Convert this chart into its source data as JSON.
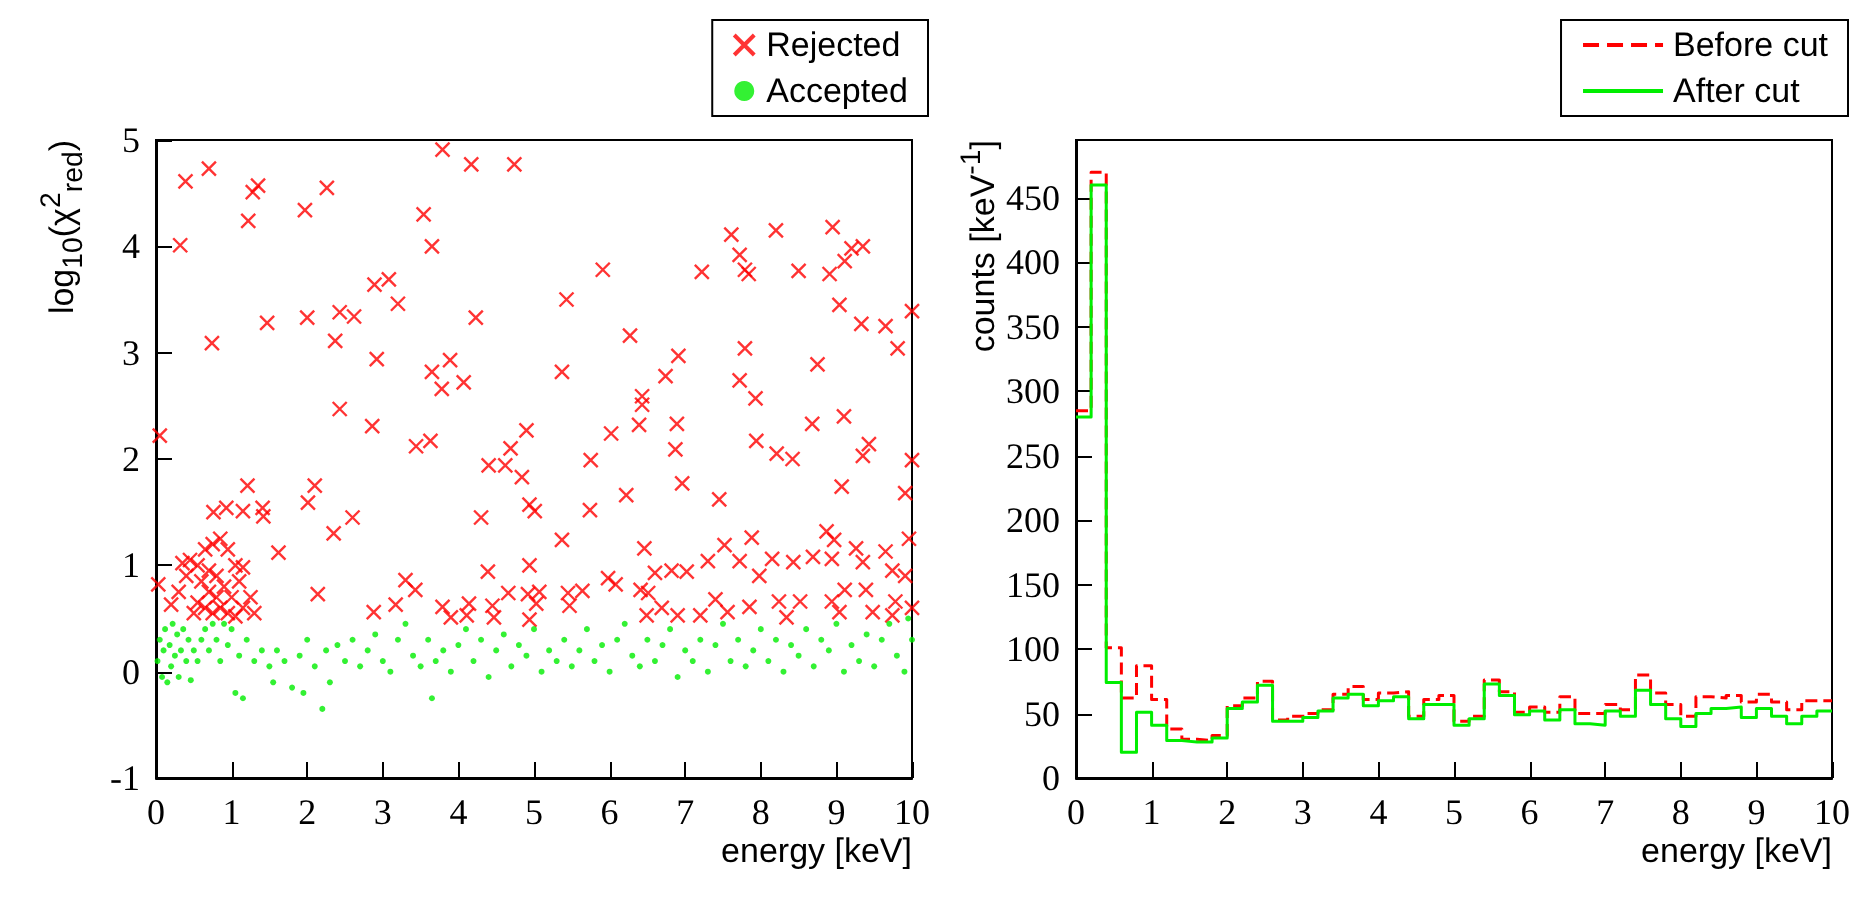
{
  "chart_data": [
    {
      "type": "scatter",
      "xlabel": "energy [keV]",
      "ylabel": "log$_{10}$(χ$^{2}$$_{red}$)",
      "xlim": [
        0,
        10
      ],
      "ylim": [
        -1,
        5
      ],
      "xticks": [
        0,
        1,
        2,
        3,
        4,
        5,
        6,
        7,
        8,
        9,
        10
      ],
      "yticks": [
        -1,
        0,
        1,
        2,
        3,
        4,
        5
      ],
      "grid": false,
      "legend": "top right",
      "series": [
        {
          "name": "Rejected",
          "color": "#ff0000",
          "marker": "cross",
          "x": [
            0.39,
            0.32,
            0.7,
            0.74,
            1.22,
            1.28,
            1.35,
            1.47,
            1.97,
            2.0,
            2.26,
            2.43,
            2.62,
            2.37,
            2.43,
            2.89,
            3.08,
            3.2,
            2.92,
            2.86,
            3.54,
            3.65,
            3.79,
            4.17,
            4.74,
            3.65,
            3.78,
            3.89,
            4.07,
            4.23,
            3.44,
            3.63,
            4.4,
            4.62,
            4.69,
            4.84,
            4.9,
            4.3,
            4.94,
            5.01,
            5.37,
            5.43,
            5.91,
            5.75,
            5.74,
            5.37,
            6.02,
            6.27,
            6.43,
            6.43,
            6.39,
            6.22,
            6.74,
            6.91,
            6.89,
            6.87,
            6.96,
            7.22,
            7.45,
            7.61,
            7.72,
            7.79,
            7.84,
            7.72,
            7.79,
            7.93,
            7.94,
            8.2,
            8.5,
            8.21,
            8.42,
            8.68,
            8.75,
            8.95,
            8.91,
            9.11,
            9.2,
            9.35,
            9.04,
            9.33,
            9.65,
            9.81,
            10.0,
            9.1,
            9.43,
            9.35,
            10.0,
            9.07,
            9.91,
            9.96,
            0.05,
            0.03,
            0.93,
            0.76,
            1.21,
            1.15,
            1.41,
            1.42,
            1.62,
            2.01,
            2.1,
            2.35,
            2.6,
            2.14,
            2.88,
            3.17,
            3.3,
            3.43,
            3.79,
            3.9,
            4.39,
            4.45,
            4.47,
            4.66,
            4.94,
            4.92,
            4.94,
            5.07,
            5.03,
            5.45,
            5.47,
            5.64,
            4.11,
            4.14,
            5.98,
            6.08,
            6.46,
            6.41,
            6.51,
            6.6,
            6.49,
            6.69,
            6.82,
            7.02,
            6.9,
            7.2,
            7.3,
            7.4,
            7.52,
            7.56,
            7.72,
            7.88,
            7.85,
            7.98,
            8.15,
            8.24,
            8.34,
            8.43,
            8.52,
            8.69,
            8.87,
            8.97,
            8.94,
            9.11,
            8.94,
            9.04,
            9.26,
            9.35,
            9.39,
            9.48,
            9.65,
            9.74,
            9.78,
            9.91,
            10.0,
            9.74,
            0.35,
            0.45,
            0.55,
            0.65,
            0.75,
            0.85,
            0.95,
            1.05,
            1.15,
            0.4,
            0.6,
            0.8,
            0.9,
            0.7,
            0.55,
            0.65,
            0.75,
            0.85,
            0.95,
            1.05,
            1.15,
            1.25,
            0.3,
            0.5,
            1.3,
            0.2,
            0.7,
            0.8,
            1.0,
            1.1
          ],
          "values": [
            4.61,
            4.01,
            4.73,
            3.09,
            4.24,
            4.51,
            4.57,
            3.28,
            4.34,
            3.33,
            4.55,
            3.38,
            3.34,
            3.11,
            2.47,
            3.64,
            3.69,
            3.46,
            2.94,
            2.31,
            4.3,
            4.0,
            4.91,
            4.77,
            4.77,
            2.82,
            2.66,
            2.93,
            2.72,
            3.33,
            2.12,
            2.17,
            1.94,
            1.94,
            2.1,
            1.83,
            2.27,
            1.45,
            1.57,
            1.51,
            2.82,
            3.5,
            3.78,
            1.99,
            1.52,
            1.24,
            2.24,
            3.16,
            2.59,
            2.51,
            2.32,
            1.66,
            2.78,
            2.97,
            2.33,
            2.09,
            1.77,
            3.76,
            1.62,
            4.11,
            3.92,
            3.78,
            3.74,
            2.74,
            3.04,
            2.57,
            2.17,
            4.15,
            3.77,
            2.05,
            2.0,
            2.33,
            2.89,
            4.18,
            3.74,
            3.86,
            3.98,
            4.0,
            3.45,
            3.27,
            3.25,
            3.04,
            3.39,
            2.4,
            2.14,
            2.03,
            1.99,
            1.74,
            1.68,
            1.25,
            2.22,
            0.82,
            1.54,
            1.5,
            1.75,
            1.51,
            1.54,
            1.46,
            1.12,
            1.59,
            1.75,
            1.3,
            1.45,
            0.73,
            0.56,
            0.63,
            0.86,
            0.77,
            0.61,
            0.51,
            0.94,
            0.62,
            0.51,
            0.74,
            1.0,
            0.73,
            0.49,
            0.75,
            0.64,
            0.74,
            0.62,
            0.76,
            0.53,
            0.64,
            0.88,
            0.82,
            1.16,
            0.77,
            0.74,
            0.93,
            0.53,
            0.6,
            0.95,
            0.94,
            0.53,
            0.53,
            1.04,
            0.68,
            1.19,
            0.56,
            1.04,
            1.26,
            0.61,
            0.9,
            1.06,
            0.66,
            0.51,
            1.03,
            0.66,
            1.08,
            1.32,
            1.24,
            1.06,
            0.77,
            0.66,
            0.56,
            1.16,
            1.03,
            0.77,
            0.56,
            1.13,
            0.95,
            0.66,
            0.9,
            0.6,
            0.53,
            1.02,
            1.05,
            1.0,
            1.15,
            1.2,
            1.25,
            1.15,
            1.0,
            0.98,
            0.9,
            0.85,
            0.9,
            0.8,
            0.75,
            0.65,
            0.6,
            0.55,
            0.6,
            0.55,
            0.52,
            0.6,
            0.7,
            0.75,
            0.55,
            0.55,
            0.63,
            0.95,
            0.7,
            0.7,
            0.85
          ]
        },
        {
          "name": "Accepted",
          "color": "#00ee00",
          "marker": "circle",
          "x": [
            0.02,
            0.05,
            0.08,
            0.1,
            0.12,
            0.15,
            0.18,
            0.2,
            0.22,
            0.25,
            0.28,
            0.3,
            0.33,
            0.36,
            0.4,
            0.43,
            0.46,
            0.5,
            0.55,
            0.6,
            0.65,
            0.7,
            0.75,
            0.8,
            0.85,
            0.9,
            0.95,
            1.0,
            1.05,
            1.1,
            1.15,
            1.2,
            1.3,
            1.4,
            1.5,
            1.55,
            1.6,
            1.7,
            1.8,
            1.9,
            1.95,
            2.0,
            2.1,
            2.2,
            2.25,
            2.3,
            2.4,
            2.5,
            2.6,
            2.7,
            2.8,
            2.9,
            3.0,
            3.1,
            3.2,
            3.3,
            3.4,
            3.5,
            3.6,
            3.65,
            3.7,
            3.8,
            3.9,
            4.0,
            4.1,
            4.2,
            4.3,
            4.4,
            4.5,
            4.6,
            4.7,
            4.8,
            4.9,
            5.0,
            5.1,
            5.2,
            5.3,
            5.4,
            5.5,
            5.6,
            5.7,
            5.8,
            5.9,
            6.0,
            6.1,
            6.2,
            6.3,
            6.4,
            6.5,
            6.6,
            6.7,
            6.8,
            6.9,
            7.0,
            7.1,
            7.2,
            7.3,
            7.4,
            7.5,
            7.6,
            7.7,
            7.8,
            7.9,
            8.0,
            8.1,
            8.2,
            8.3,
            8.4,
            8.5,
            8.6,
            8.7,
            8.8,
            8.9,
            9.0,
            9.1,
            9.2,
            9.3,
            9.4,
            9.5,
            9.6,
            9.7,
            9.8,
            9.9,
            10.0,
            9.95
          ],
          "values": [
            0.1,
            0.3,
            -0.05,
            0.2,
            0.4,
            -0.1,
            0.25,
            0.05,
            0.45,
            0.15,
            0.35,
            -0.05,
            0.2,
            0.4,
            0.1,
            0.3,
            -0.08,
            0.2,
            0.1,
            0.3,
            0.4,
            0.2,
            0.45,
            0.3,
            0.1,
            0.45,
            0.25,
            0.4,
            -0.2,
            0.15,
            -0.25,
            0.3,
            0.1,
            0.2,
            0.05,
            -0.1,
            0.2,
            0.1,
            -0.15,
            0.15,
            -0.2,
            0.3,
            0.05,
            -0.35,
            0.2,
            -0.1,
            0.25,
            0.1,
            0.3,
            0.05,
            0.2,
            0.35,
            0.1,
            0.0,
            0.3,
            0.45,
            0.15,
            0.05,
            0.3,
            -0.25,
            0.1,
            0.2,
            0.0,
            0.25,
            0.4,
            0.1,
            0.3,
            -0.05,
            0.2,
            0.35,
            0.05,
            0.25,
            0.15,
            0.4,
            0.0,
            0.2,
            0.1,
            0.3,
            0.05,
            0.2,
            0.4,
            0.1,
            0.25,
            0.0,
            0.3,
            0.45,
            0.15,
            0.05,
            0.3,
            0.1,
            0.25,
            0.4,
            -0.05,
            0.2,
            0.1,
            0.3,
            0.0,
            0.25,
            0.45,
            0.1,
            0.3,
            0.05,
            0.2,
            0.4,
            0.1,
            0.3,
            0.0,
            0.25,
            0.15,
            0.4,
            0.05,
            0.3,
            0.2,
            0.45,
            0.0,
            0.25,
            0.1,
            0.35,
            0.05,
            0.3,
            0.45,
            0.15,
            0.0,
            0.3,
            0.5
          ]
        }
      ]
    },
    {
      "type": "histogram",
      "xlabel": "energy [keV]",
      "ylabel": "counts [keV$^{-1}$]",
      "xlim": [
        0,
        10
      ],
      "ylim": [
        0,
        495
      ],
      "xticks": [
        0,
        1,
        2,
        3,
        4,
        5,
        6,
        7,
        8,
        9,
        10
      ],
      "yticks": [
        0,
        50,
        100,
        150,
        200,
        250,
        300,
        350,
        400,
        450
      ],
      "grid": false,
      "legend": "top right",
      "bins": [
        0,
        0.2,
        0.4,
        0.6,
        0.8,
        1.0,
        1.2,
        1.4,
        1.6,
        1.8,
        2.0,
        2.2,
        2.4,
        2.6,
        2.8,
        3.0,
        3.2,
        3.4,
        3.6,
        3.8,
        4.0,
        4.2,
        4.4,
        4.6,
        4.8,
        5.0,
        5.2,
        5.4,
        5.6,
        5.8,
        6.0,
        6.2,
        6.4,
        6.6,
        6.8,
        7.0,
        7.2,
        7.4,
        7.6,
        7.8,
        8.0,
        8.2,
        8.4,
        8.6,
        8.8,
        9.0,
        9.2,
        9.4,
        9.6,
        9.8,
        10.0
      ],
      "series": [
        {
          "name": "Before cut",
          "color": "#ff0000",
          "line_style": "dashed",
          "values": [
            285,
            470,
            101,
            62,
            87,
            61,
            38,
            30,
            29,
            33,
            56,
            62,
            75,
            45,
            48,
            50,
            53,
            65,
            71,
            61,
            66,
            67,
            48,
            61,
            64,
            44,
            48,
            76,
            67,
            51,
            55,
            51,
            63,
            50,
            50,
            57,
            53,
            80,
            66,
            57,
            48,
            63,
            62,
            64,
            59,
            65,
            59,
            53,
            60,
            60
          ]
        },
        {
          "name": "After cut",
          "color": "#00ee00",
          "line_style": "solid",
          "values": [
            280,
            460,
            74,
            20,
            51,
            41,
            29,
            28,
            28,
            31,
            54,
            59,
            72,
            44,
            44,
            47,
            52,
            62,
            65,
            56,
            60,
            63,
            46,
            57,
            57,
            41,
            46,
            73,
            64,
            49,
            52,
            45,
            53,
            42,
            41,
            52,
            48,
            68,
            57,
            46,
            40,
            50,
            54,
            55,
            47,
            54,
            48,
            42,
            48,
            52
          ]
        }
      ]
    }
  ]
}
